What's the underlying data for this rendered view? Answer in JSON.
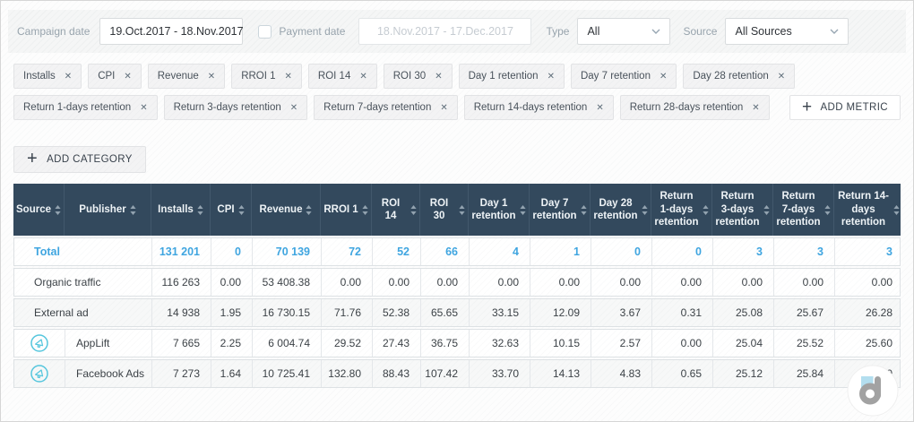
{
  "filters": {
    "campaign_date_label": "Campaign date",
    "campaign_date_value": "19.Oct.2017 - 18.Nov.2017",
    "payment_date_label": "Payment date",
    "payment_date_value": "18.Nov.2017 - 17.Dec.2017",
    "payment_date_checked": false,
    "type_label": "Type",
    "type_value": "All",
    "source_label": "Source",
    "source_value": "All Sources"
  },
  "metrics": {
    "row1": [
      "Installs",
      "CPI",
      "Revenue",
      "RROI 1",
      "ROI 14",
      "ROI 30",
      "Day 1 retention",
      "Day 7 retention",
      "Day 28 retention"
    ],
    "row2": [
      "Return 1-days retention",
      "Return 3-days retention",
      "Return 7-days retention",
      "Return 14-days retention",
      "Return 28-days retention"
    ],
    "add_metric_label": "ADD METRIC"
  },
  "add_category_label": "ADD CATEGORY",
  "table": {
    "columns": [
      "Source",
      "Publisher",
      "Installs",
      "CPI",
      "Revenue",
      "RROI 1",
      "ROI 14",
      "ROI 30",
      "Day 1 retention",
      "Day 7 retention",
      "Day 28 retention",
      "Return 1-days retention",
      "Return 3-days retention",
      "Return 7-days retention",
      "Return 14-days retention"
    ],
    "rows": [
      {
        "type": "total",
        "source": "Total",
        "publisher": "",
        "values": [
          "131 201",
          "0",
          "70 139",
          "72",
          "52",
          "66",
          "4",
          "1",
          "0",
          "0",
          "3",
          "3",
          "3"
        ]
      },
      {
        "type": "category",
        "source": "Organic traffic",
        "publisher": "",
        "values": [
          "116 263",
          "0.00",
          "53 408.38",
          "0.00",
          "0.00",
          "0.00",
          "0.00",
          "0.00",
          "0.00",
          "0.00",
          "0.00",
          "0.00",
          "0.00"
        ]
      },
      {
        "type": "category",
        "source": "External ad",
        "publisher": "",
        "values": [
          "14 938",
          "1.95",
          "16 730.15",
          "71.76",
          "52.38",
          "65.65",
          "33.15",
          "12.09",
          "3.67",
          "0.31",
          "25.08",
          "25.67",
          "26.28"
        ]
      },
      {
        "type": "publisher",
        "source": "",
        "icon": "megaphone",
        "publisher": "AppLift",
        "values": [
          "7 665",
          "2.25",
          "6 004.74",
          "29.52",
          "27.43",
          "36.75",
          "32.63",
          "10.15",
          "2.57",
          "0.00",
          "25.04",
          "25.52",
          "25.60"
        ]
      },
      {
        "type": "publisher",
        "source": "",
        "icon": "megaphone",
        "publisher": "Facebook Ads",
        "values": [
          "7 273",
          "1.64",
          "10 725.41",
          "132.80",
          "88.43",
          "107.42",
          "33.70",
          "14.13",
          "4.83",
          "0.65",
          "25.12",
          "25.84",
          "27.00"
        ]
      }
    ]
  },
  "colors": {
    "accent_blue": "#3fa5e0",
    "header_bg": "#33495d",
    "icon_cyan": "#55c6dd"
  }
}
